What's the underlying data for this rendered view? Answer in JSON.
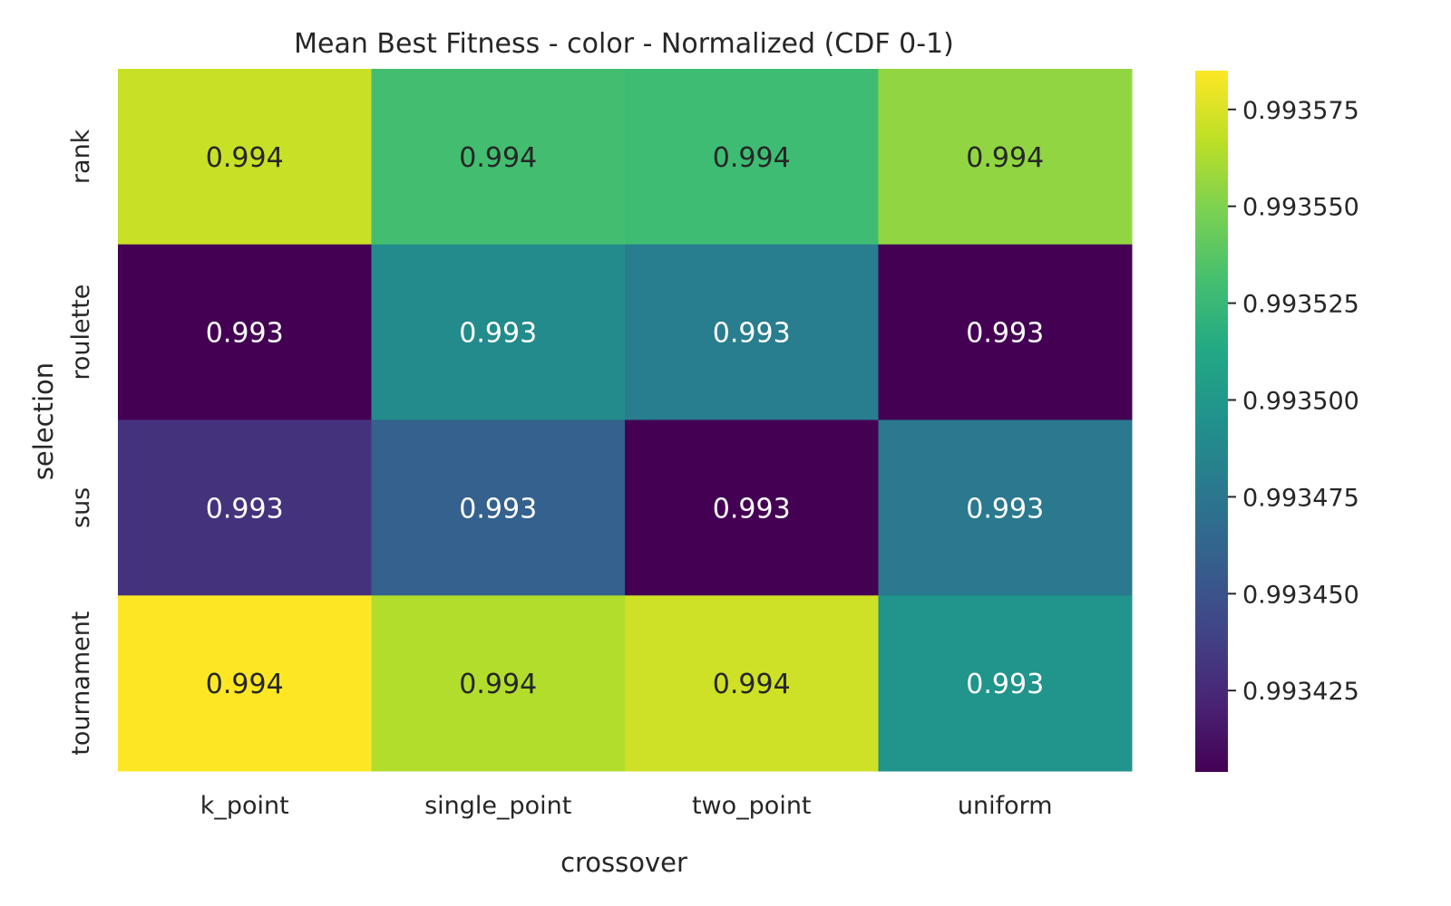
{
  "chart_data": {
    "type": "heatmap",
    "title": "Mean Best Fitness - color - Normalized (CDF 0-1)",
    "xlabel": "crossover",
    "ylabel": "selection",
    "x_categories": [
      "k_point",
      "single_point",
      "two_point",
      "uniform"
    ],
    "y_categories": [
      "rank",
      "roulette",
      "sus",
      "tournament"
    ],
    "values": [
      [
        0.99357,
        0.99353,
        0.993528,
        0.993555
      ],
      [
        0.993404,
        0.99349,
        0.99348,
        0.993404
      ],
      [
        0.99343,
        0.99346,
        0.993404,
        0.993477
      ],
      [
        0.993585,
        0.993564,
        0.993572,
        0.993497
      ]
    ],
    "annotations": [
      [
        "0.994",
        "0.994",
        "0.994",
        "0.994"
      ],
      [
        "0.993",
        "0.993",
        "0.993",
        "0.993"
      ],
      [
        "0.993",
        "0.993",
        "0.993",
        "0.993"
      ],
      [
        "0.994",
        "0.994",
        "0.994",
        "0.993"
      ]
    ],
    "colormap": "viridis",
    "vmin": 0.993404,
    "vmax": 0.993585,
    "colorbar_ticks": [
      0.993425,
      0.99345,
      0.993475,
      0.9935,
      0.993525,
      0.99355,
      0.993575
    ],
    "colorbar_tick_labels": [
      "0.993425",
      "0.993450",
      "0.993475",
      "0.993500",
      "0.993525",
      "0.993550",
      "0.993575"
    ],
    "grid": false,
    "colors": {
      "text_dark": "#262626",
      "text_light": "#ffffff"
    }
  }
}
